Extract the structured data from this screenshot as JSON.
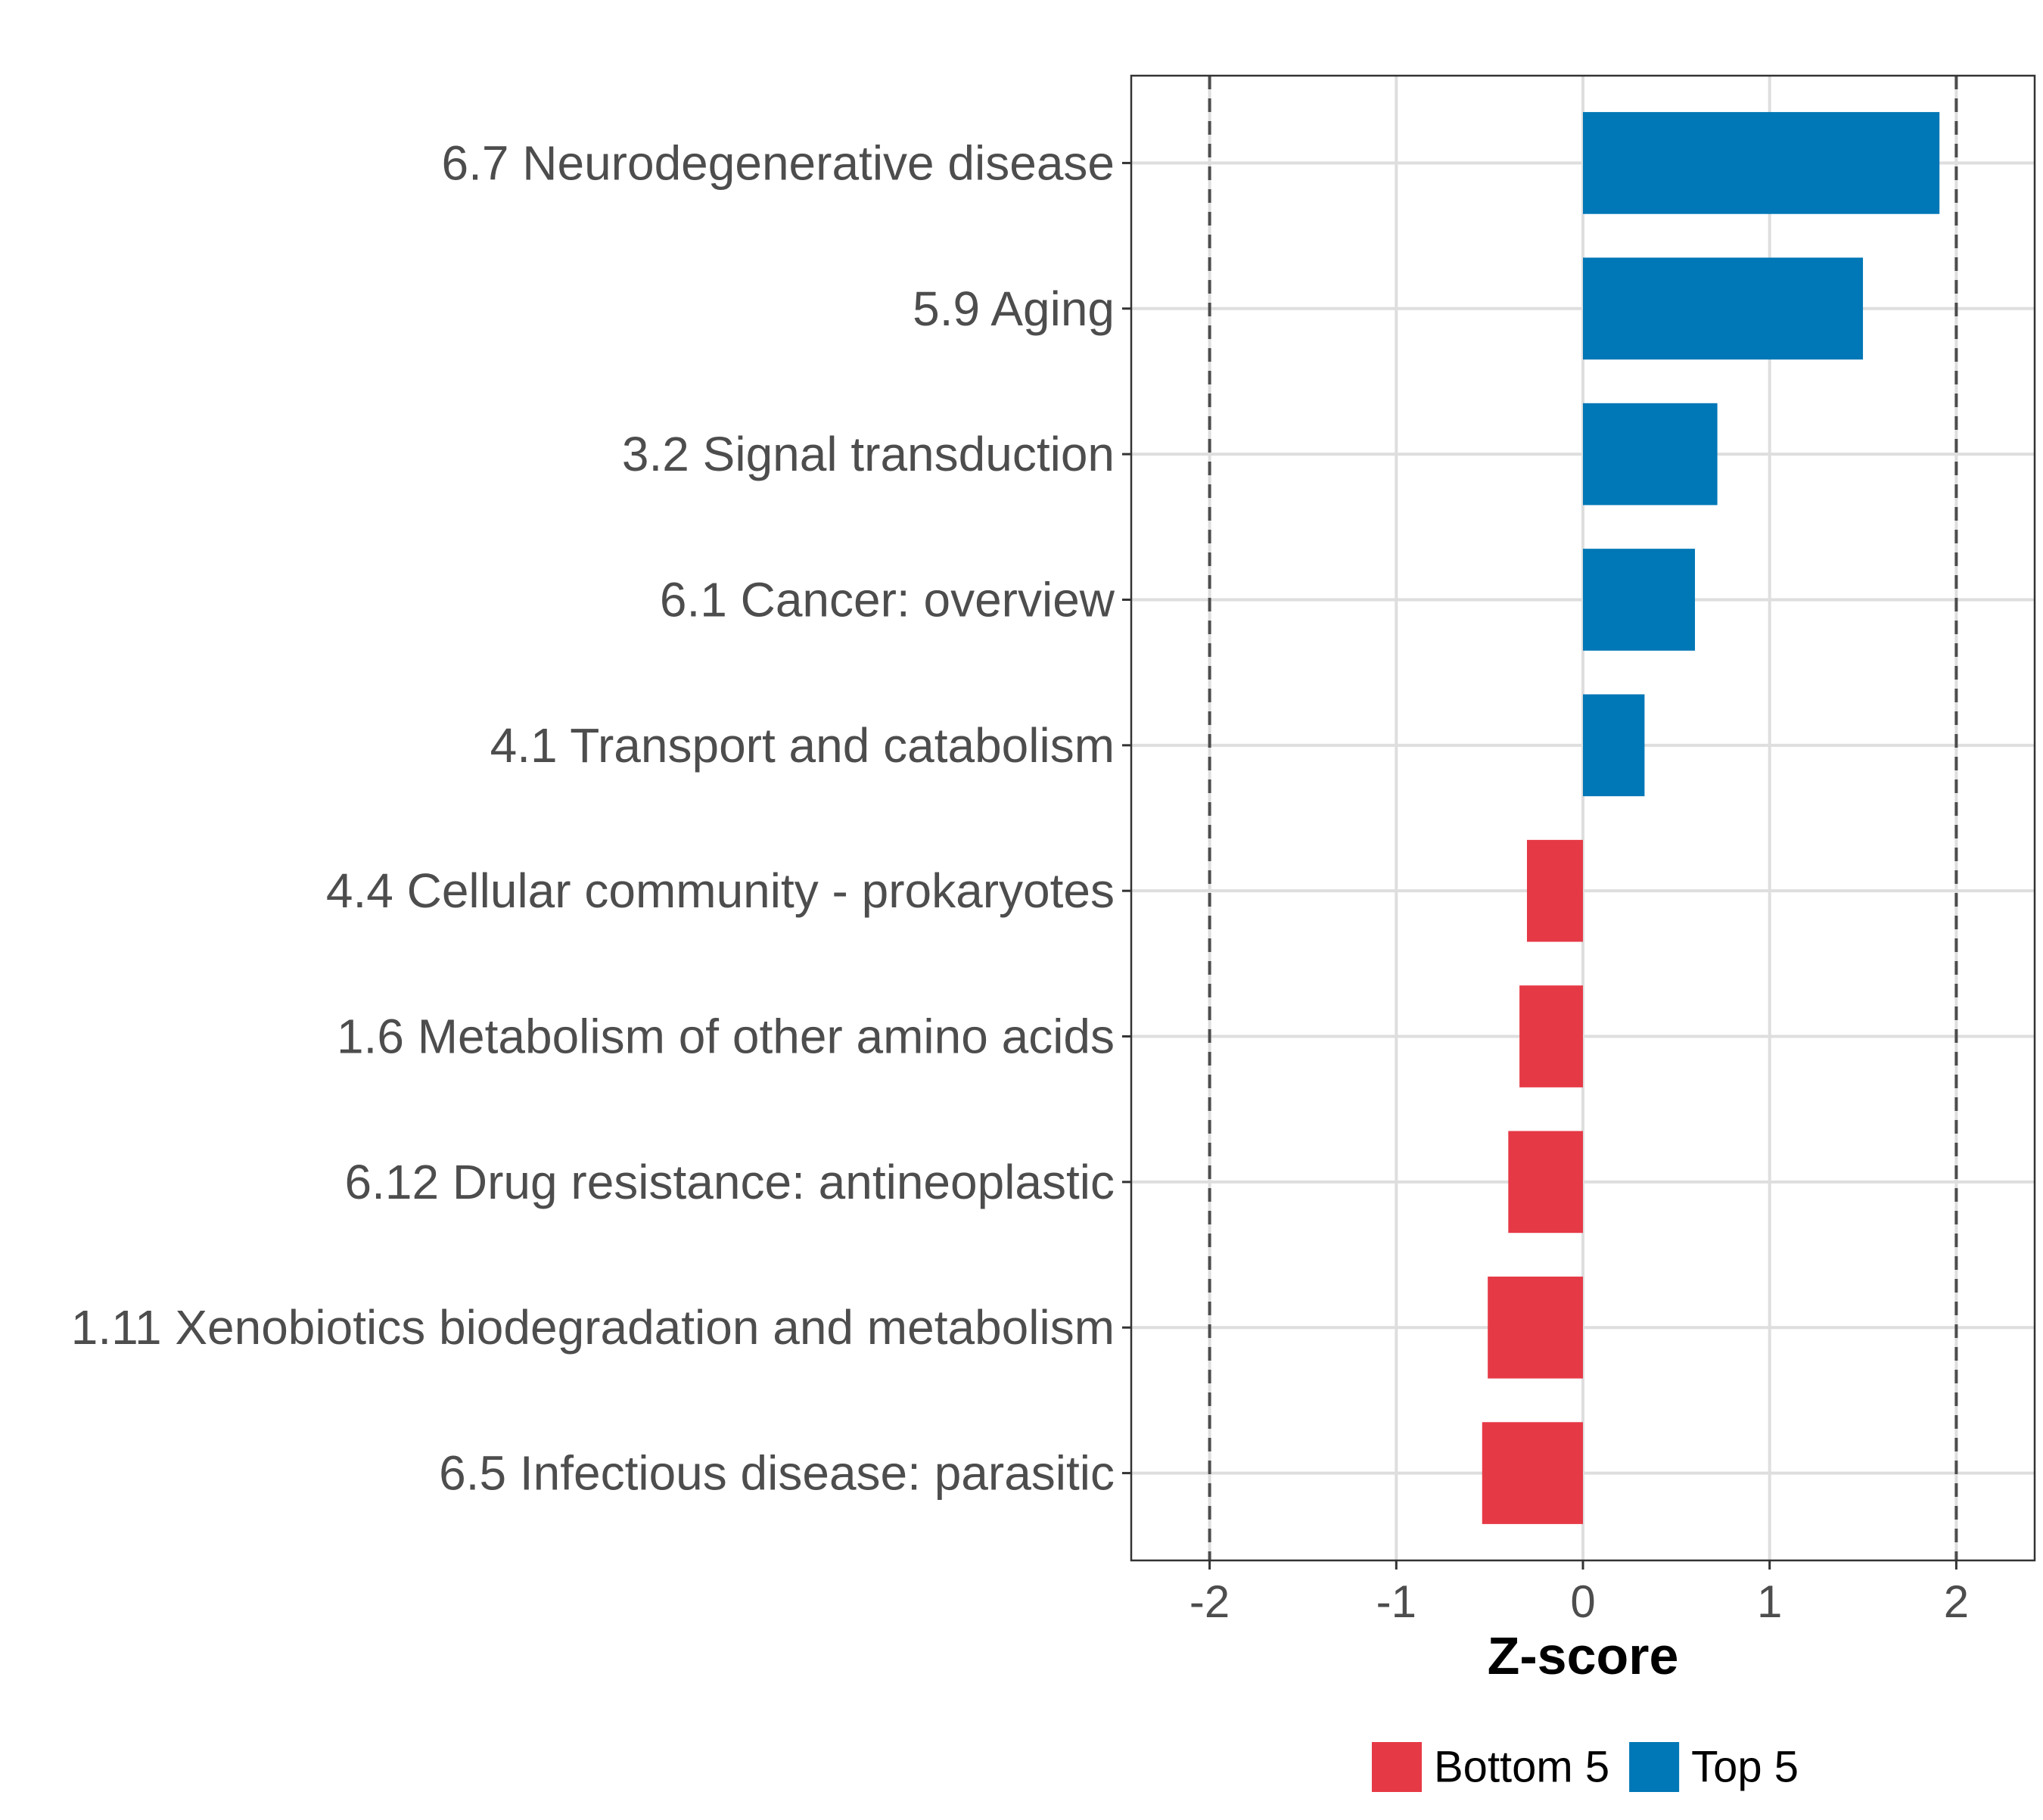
{
  "chart_data": {
    "type": "bar",
    "orientation": "horizontal",
    "categories": [
      "6.7 Neurodegenerative disease",
      "5.9 Aging",
      "3.2 Signal transduction",
      "6.1 Cancer: overview",
      "4.1 Transport and catabolism",
      "4.4 Cellular community - prokaryotes",
      "1.6 Metabolism of other amino acids",
      "6.12 Drug resistance: antineoplastic",
      "1.11 Xenobiotics biodegradation and metabolism",
      "6.5 Infectious disease: parasitic"
    ],
    "values": [
      1.91,
      1.5,
      0.72,
      0.6,
      0.33,
      -0.3,
      -0.34,
      -0.4,
      -0.51,
      -0.54
    ],
    "groups": [
      "Top 5",
      "Top 5",
      "Top 5",
      "Top 5",
      "Top 5",
      "Bottom 5",
      "Bottom 5",
      "Bottom 5",
      "Bottom 5",
      "Bottom 5"
    ],
    "xlabel": "Z-score",
    "ylabel": "",
    "xlim": [
      -2.42,
      2.42
    ],
    "xticks": [
      -2,
      -1,
      0,
      1,
      2
    ],
    "xtick_labels": [
      "-2",
      "-1",
      "0",
      "1",
      "2"
    ],
    "reference_lines": [
      -2,
      2
    ],
    "grid": true,
    "legend": {
      "position": "bottom",
      "entries": [
        {
          "label": "Bottom 5",
          "color": "#E63946"
        },
        {
          "label": "Top 5",
          "color": "#0077B6"
        }
      ]
    },
    "colors": {
      "Top 5": "#0077B6",
      "Bottom 5": "#E63946"
    }
  }
}
